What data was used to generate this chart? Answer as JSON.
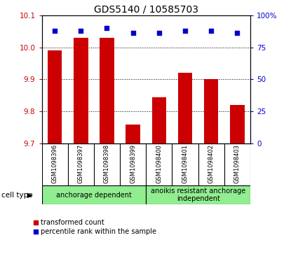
{
  "title": "GDS5140 / 10585703",
  "samples": [
    "GSM1098396",
    "GSM1098397",
    "GSM1098398",
    "GSM1098399",
    "GSM1098400",
    "GSM1098401",
    "GSM1098402",
    "GSM1098403"
  ],
  "bar_values": [
    9.99,
    10.03,
    10.03,
    9.76,
    9.845,
    9.92,
    9.9,
    9.82
  ],
  "percentile_values": [
    88,
    88,
    90,
    86,
    86,
    88,
    88,
    86
  ],
  "ylim": [
    9.7,
    10.1
  ],
  "yticks": [
    9.7,
    9.8,
    9.9,
    10.0,
    10.1
  ],
  "right_yticks": [
    0,
    25,
    50,
    75,
    100
  ],
  "bar_color": "#cc0000",
  "dot_color": "#0000cc",
  "bar_bottom": 9.7,
  "group1_label": "anchorage dependent",
  "group2_label": "anoikis resistant anchorage\nindependent",
  "group1_indices": [
    0,
    1,
    2,
    3
  ],
  "group2_indices": [
    4,
    5,
    6,
    7
  ],
  "cell_type_label": "cell type",
  "legend_bar_label": "transformed count",
  "legend_dot_label": "percentile rank within the sample",
  "sample_box_color": "#c8c8c8",
  "group_bg_color": "#90ee90",
  "title_fontsize": 10,
  "tick_fontsize": 7.5,
  "right_tick_color": "#0000cc",
  "left_tick_color": "#cc0000"
}
